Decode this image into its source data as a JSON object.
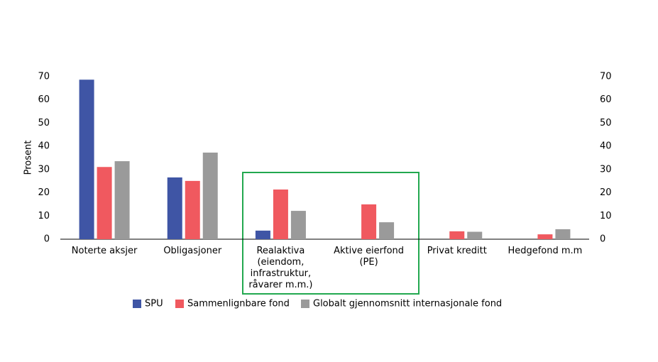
{
  "chart_data": {
    "type": "bar",
    "y_label": "Prosent",
    "categories": [
      "Noterte aksjer",
      "Obligasjoner",
      "Realaktiva\n(eiendom,\ninfrastruktur,\nråvarer m.m.)",
      "Aktive eierfond\n(PE)",
      "Privat kreditt",
      "Hedgefond m.m"
    ],
    "series": [
      {
        "name": "SPU",
        "color": "#3f55a5",
        "values": [
          68.7,
          26.6,
          3.7,
          null,
          null,
          null
        ]
      },
      {
        "name": "Sammenlignbare fond",
        "color": "#f0595f",
        "values": [
          31.1,
          25.1,
          21.4,
          15.0,
          3.4,
          2.1
        ]
      },
      {
        "name": "Globalt gjennomsnitt internasjonale fond",
        "color": "#9a9a9a",
        "values": [
          33.6,
          37.3,
          12.2,
          7.3,
          3.2,
          4.3
        ]
      }
    ],
    "ylim": [
      0,
      70
    ],
    "yticks": [
      0,
      10,
      20,
      30,
      40,
      50,
      60,
      70
    ],
    "y2lim": [
      0,
      70
    ],
    "y2ticks": [
      0,
      10,
      20,
      30,
      40,
      50,
      60,
      70
    ]
  }
}
